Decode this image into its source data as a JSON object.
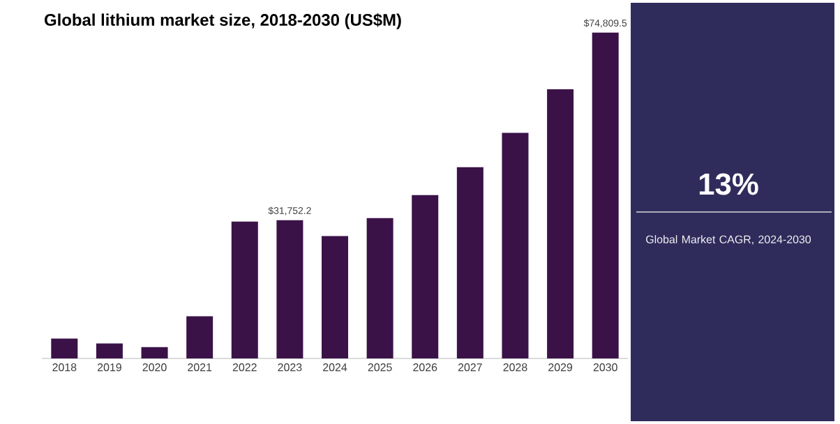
{
  "chart_data": {
    "type": "bar",
    "title": "Global lithium market size, 2018-2030 (US$M)",
    "categories": [
      "2018",
      "2019",
      "2020",
      "2021",
      "2022",
      "2023",
      "2024",
      "2025",
      "2026",
      "2027",
      "2028",
      "2029",
      "2030"
    ],
    "values": [
      4570,
      3430,
      2600,
      9700,
      31400,
      31752.2,
      28100,
      32200,
      37500,
      43900,
      51800,
      61800,
      74809.5
    ],
    "value_labels": [
      null,
      null,
      null,
      null,
      null,
      "$31,752.2",
      null,
      null,
      null,
      null,
      null,
      null,
      "$74,809.5"
    ],
    "color": "#3a1248",
    "annotations": [
      "13%",
      "Global Market CAGR, 2024-2030"
    ]
  }
}
